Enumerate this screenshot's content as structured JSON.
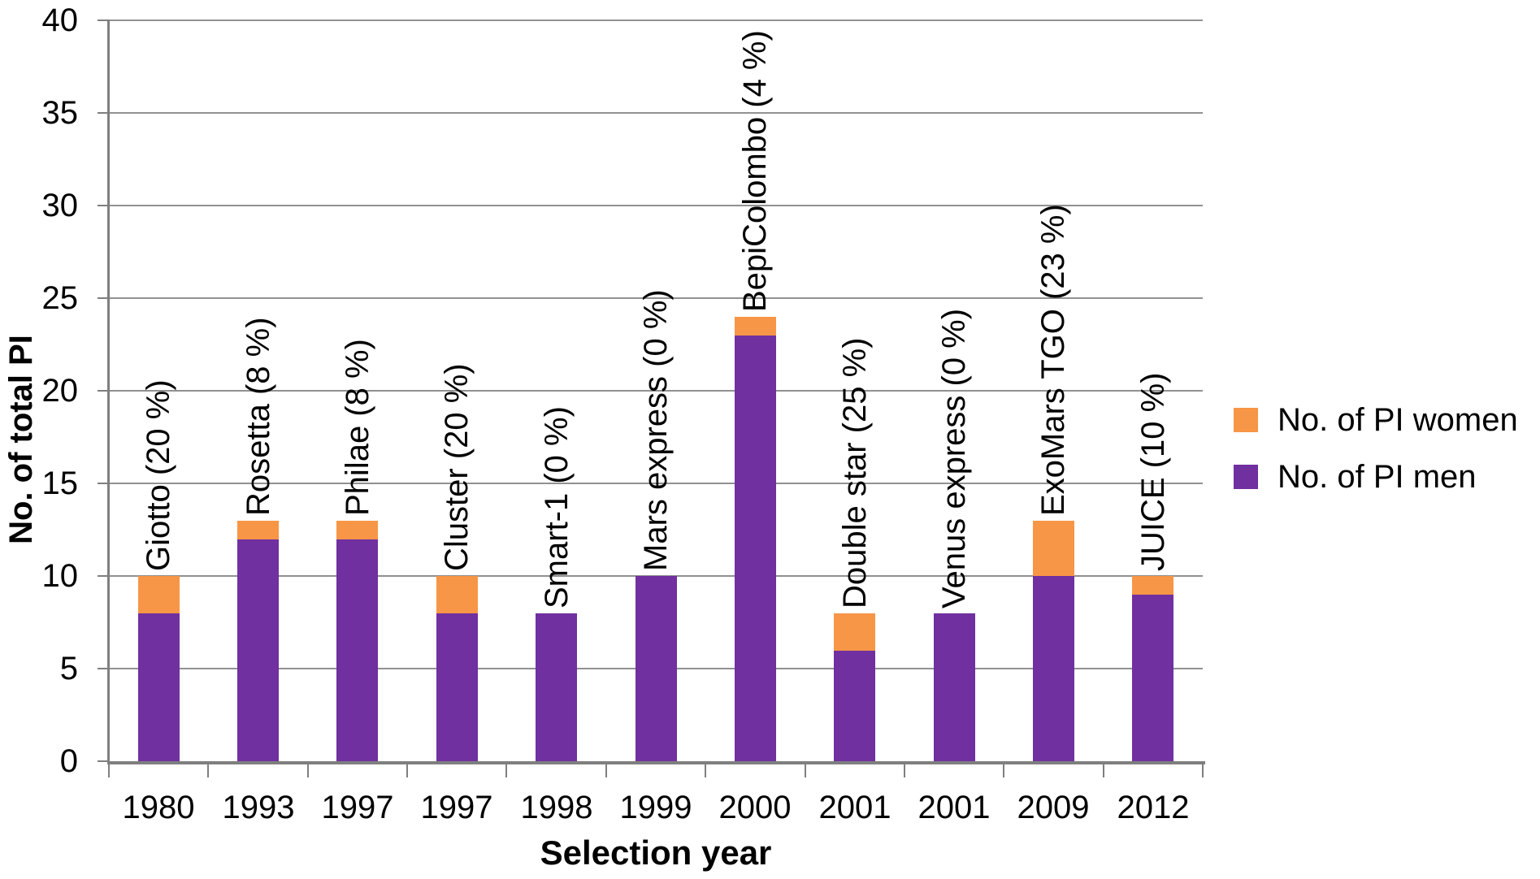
{
  "chart_data": {
    "type": "bar",
    "stacked": true,
    "title": "",
    "xlabel": "Selection year",
    "ylabel": "No. of total PI",
    "ylim": [
      0,
      40
    ],
    "yticks": [
      0,
      5,
      10,
      15,
      20,
      25,
      30,
      35,
      40
    ],
    "grid": true,
    "legend_position": "right",
    "categories": [
      "1980",
      "1993",
      "1997",
      "1997",
      "1998",
      "1999",
      "2000",
      "2001",
      "2001",
      "2009",
      "2012"
    ],
    "bar_labels": [
      "Giotto (20 %)",
      "Rosetta (8 %)",
      "Philae (8 %)",
      "Cluster (20 %)",
      "Smart-1 (0 %)",
      "Mars express (0 %)",
      "BepiColombo (4 %)",
      "Double star (25 %)",
      "Venus express (0 %)",
      "ExoMars TGO (23 %)",
      "JUICE (10 %)"
    ],
    "series": [
      {
        "name": "No. of PI men",
        "color": "#7030A0",
        "values": [
          8,
          12,
          12,
          8,
          8,
          10,
          23,
          6,
          8,
          10,
          9
        ]
      },
      {
        "name": "No. of PI women",
        "color": "#F79646",
        "values": [
          2,
          1,
          1,
          2,
          0,
          0,
          1,
          2,
          0,
          3,
          1
        ]
      }
    ]
  },
  "axes": {
    "x_title": "Selection year",
    "y_title": "No. of total PI"
  },
  "legend": {
    "items": [
      {
        "label": "No. of PI women",
        "color": "#F79646"
      },
      {
        "label": "No. of PI men",
        "color": "#7030A0"
      }
    ]
  },
  "colors": {
    "men": "#7030A0",
    "women": "#F79646",
    "gridline": "#919191",
    "axis": "#7f7f7f",
    "background": "#ffffff",
    "text": "#000000"
  }
}
